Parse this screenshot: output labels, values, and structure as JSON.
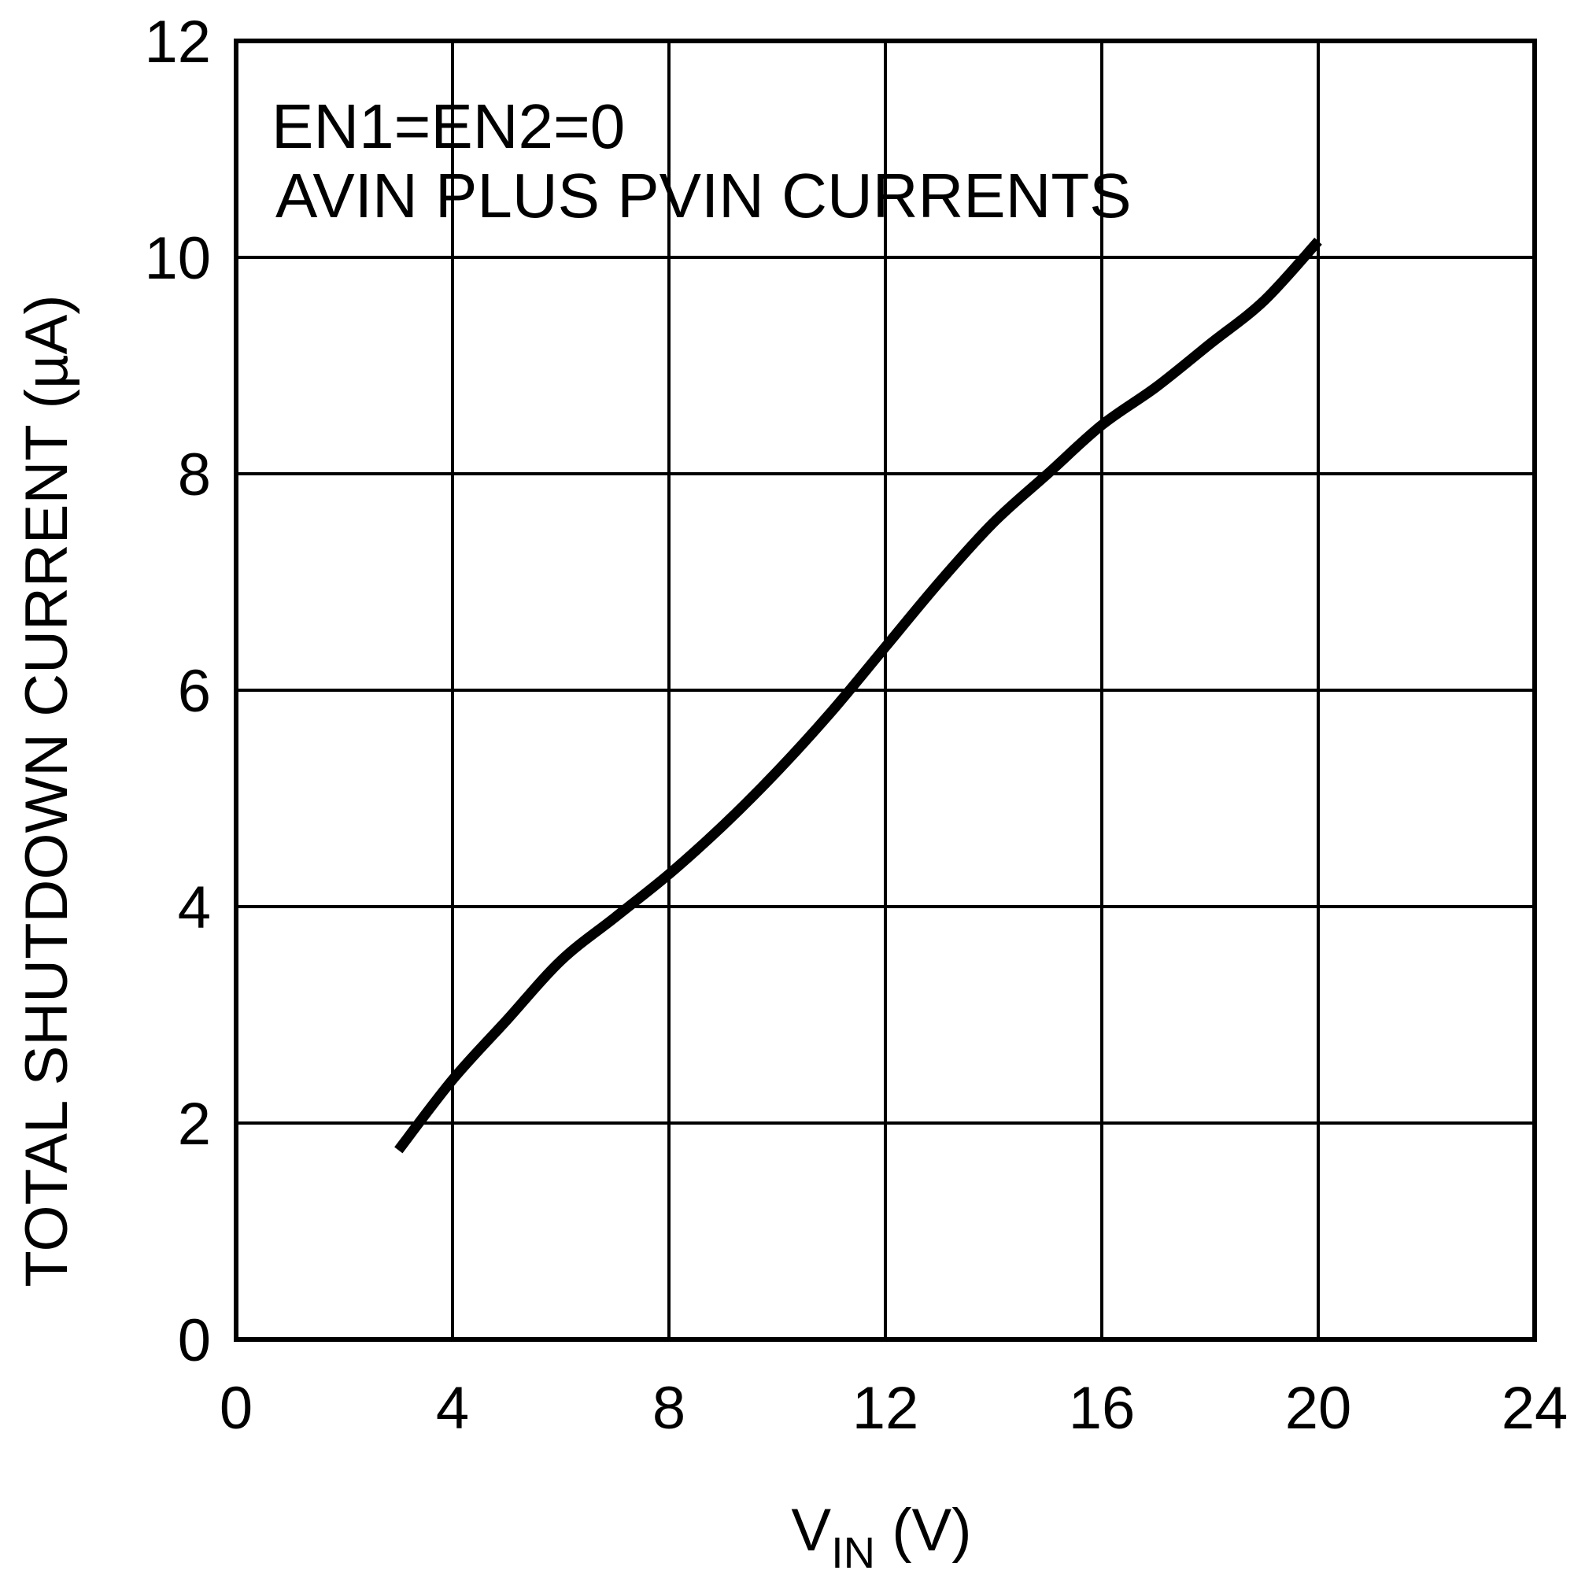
{
  "chart_data": {
    "type": "line",
    "title": "",
    "xlabel": {
      "main": "V",
      "sub": "IN",
      "unit": " (V)"
    },
    "ylabel": "TOTAL SHUTDOWN CURRENT (µA)",
    "xlim": [
      0,
      24
    ],
    "ylim": [
      0,
      12
    ],
    "xticks": [
      "0",
      "4",
      "8",
      "12",
      "16",
      "20",
      "24"
    ],
    "yticks": [
      "0",
      "2",
      "4",
      "6",
      "8",
      "10",
      "12"
    ],
    "grid": true,
    "annotations": [
      "EN1=EN2=0",
      "AVIN PLUS PVIN CURRENTS"
    ],
    "series": [
      {
        "name": "Total shutdown current",
        "x": [
          3.0,
          4.0,
          5.0,
          6.0,
          7.0,
          8.0,
          9.0,
          10.0,
          11.0,
          12.0,
          13.0,
          14.0,
          15.0,
          16.0,
          17.0,
          18.0,
          19.0,
          20.0
        ],
        "y": [
          1.75,
          2.4,
          2.95,
          3.5,
          3.9,
          4.3,
          4.75,
          5.25,
          5.8,
          6.4,
          7.0,
          7.55,
          8.0,
          8.45,
          8.8,
          9.2,
          9.6,
          10.15
        ]
      }
    ]
  },
  "colors": {
    "background": "#ffffff",
    "line": "#000000",
    "grid": "#000000"
  }
}
